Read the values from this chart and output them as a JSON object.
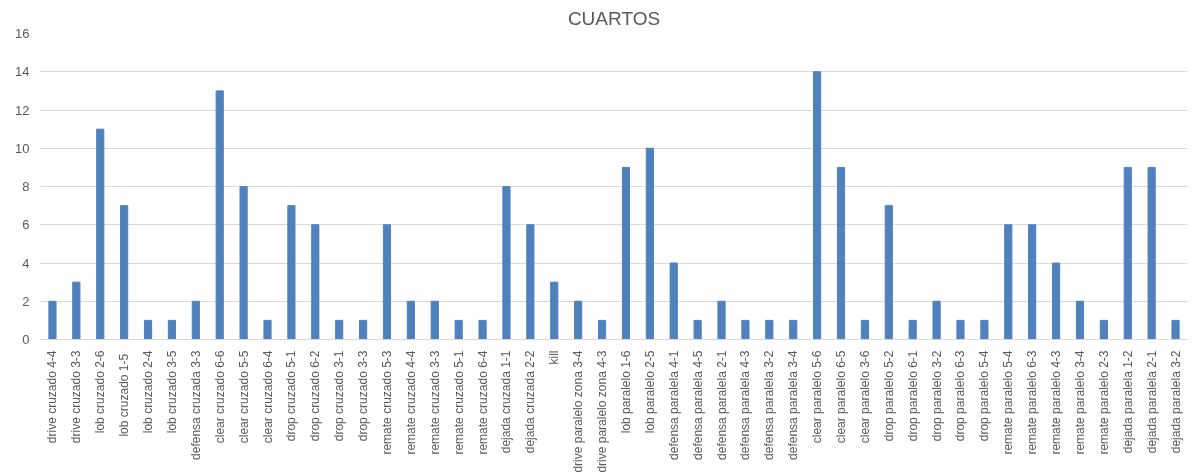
{
  "chart_data": {
    "type": "bar",
    "title": "CUARTOS",
    "categories": [
      "drive cruzado 4-4",
      "drive cruzado 3-3",
      "lob cruzado 2-6",
      "lob cruzado  1-5",
      "lob cruzado 2-4",
      "lob cruzado 3-5",
      "defensa cruzada 3-3",
      "clear cruzado 6-6",
      "clear cruzado 5-5",
      "clear cruzado 6-4",
      "drop cruzado 5-1",
      "drop cruzado 6-2",
      "drop cruzado 3-1",
      "drop cruzado 3-3",
      "remate cruzado 5-3",
      "remate cruzado 4-4",
      "remate cruzado 3-3",
      "remate cruzado 5-1",
      "remate cruzado 6-4",
      "dejada cruzada 1-1",
      "dejada cruzada 2-2",
      "kill",
      "drive paralelo zona 3-4",
      "drive paralelo zona 4-3",
      "lob paralelo 1-6",
      "lob paralelo 2-5",
      "defensa paralela 4-1",
      "defensa paralela 4-5",
      "defensa paralela 2-1",
      "defensa paralela 4-3",
      "defensa paralela 3-2",
      "defensa paralela 3-4",
      "clear paralelo 5-6",
      "clear paralelo 6-5",
      "clear paralelo 3-6",
      "drop paralelo 5-2",
      "drop paralelo 6-1",
      "drop paralelo 3-2",
      "drop paralelo 6-3",
      "drop paralelo 5-4",
      "remate paralelo 5-4",
      "remate paralelo 6-3",
      "remate paralelo 4-3",
      "remate paralelo 3-4",
      "remate paralelo 2-3",
      "dejada paralela 1-2",
      "dejada paralela 2-1",
      "dejada paralela 3-2"
    ],
    "values": [
      2,
      3,
      11,
      7,
      1,
      1,
      2,
      13,
      8,
      1,
      7,
      6,
      1,
      1,
      6,
      2,
      2,
      1,
      1,
      8,
      6,
      3,
      2,
      1,
      9,
      10,
      4,
      1,
      2,
      1,
      1,
      1,
      14,
      9,
      1,
      7,
      1,
      2,
      1,
      1,
      6,
      6,
      4,
      2,
      1,
      9,
      9,
      1
    ],
    "color": "#4f81bd",
    "ylim": [
      0,
      16
    ],
    "yticks": [
      0,
      2,
      4,
      6,
      8,
      10,
      12,
      14,
      16
    ],
    "grid": "y"
  }
}
